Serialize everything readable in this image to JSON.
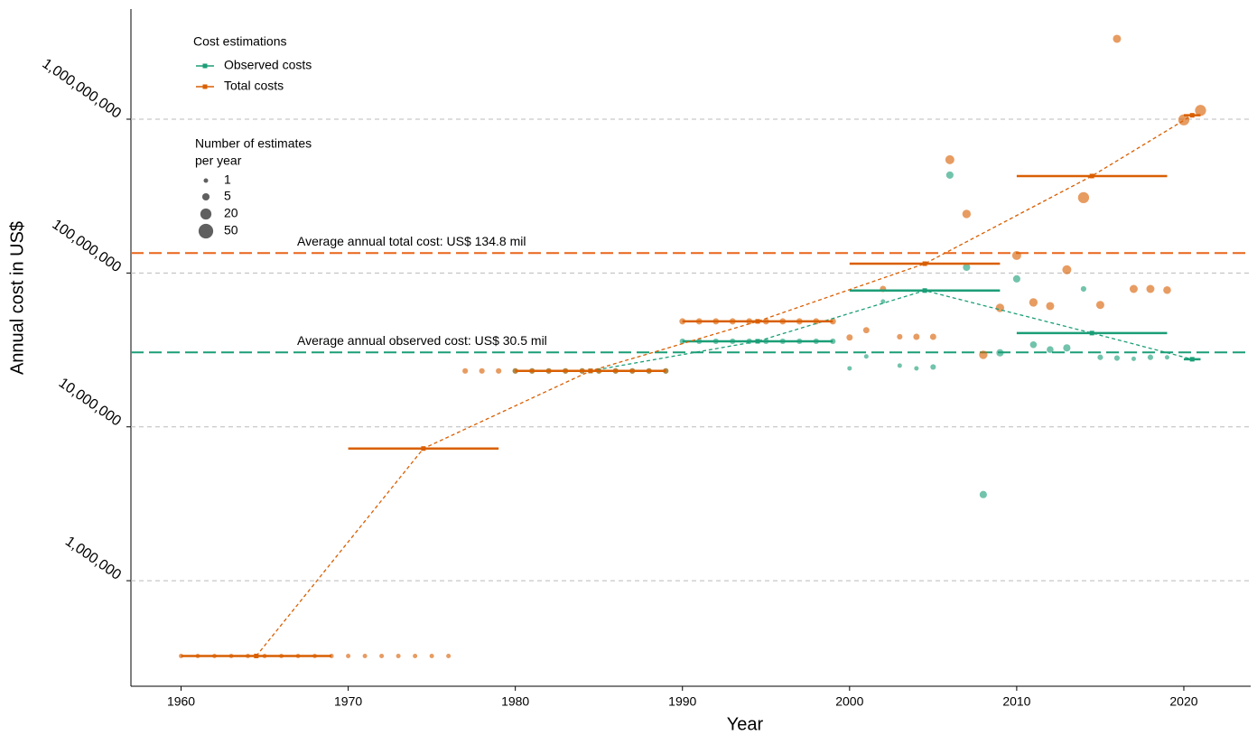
{
  "chart_data": {
    "type": "scatter",
    "x_label": "Year",
    "y_label": "Annual cost in US$",
    "xlim": [
      1957,
      2024
    ],
    "ylim": [
      206000,
      5200000000
    ],
    "log_y": true,
    "grid": true,
    "xticks": [
      1960,
      1970,
      1980,
      1990,
      2000,
      2010,
      2020
    ],
    "yticks": [
      {
        "value": 1000000,
        "label": "1,000,000"
      },
      {
        "value": 10000000,
        "label": "10,000,000"
      },
      {
        "value": 100000000,
        "label": "100,000,000"
      },
      {
        "value": 1000000000,
        "label": "1,000,000,000"
      }
    ],
    "legend": {
      "title": "Cost estimations",
      "position": "top-left"
    },
    "size_legend": {
      "title": [
        "Number of estimates",
        "per year"
      ],
      "sizes": [
        1,
        5,
        20,
        50
      ]
    },
    "reference_lines": [
      {
        "label": "Average annual total cost: US$ 134.8 mil",
        "value": 134800000,
        "color": "#e8651a"
      },
      {
        "label": "Average annual observed cost: US$ 30.5 mil",
        "value": 30500000,
        "color": "#1b9e77"
      }
    ],
    "series": [
      {
        "name": "Observed costs",
        "color": "#1b9e77",
        "x": [
          1980,
          1981,
          1982,
          1983,
          1984,
          1985,
          1986,
          1987,
          1988,
          1989,
          1990,
          1991,
          1992,
          1993,
          1994,
          1995,
          1996,
          1997,
          1998,
          1999,
          2000,
          2001,
          2002,
          2003,
          2004,
          2005,
          2006,
          2007,
          2008,
          2009,
          2010,
          2011,
          2012,
          2013,
          2014,
          2015,
          2016,
          2017,
          2018,
          2019
        ],
        "values": [
          23100000,
          23100000,
          23100000,
          23100000,
          23100000,
          23100000,
          23100000,
          23100000,
          23100000,
          23100000,
          36000000,
          36000000,
          36000000,
          36000000,
          36000000,
          36000000,
          36000000,
          36000000,
          36000000,
          36000000,
          24000000,
          28700000,
          65300000,
          25000000,
          24000000,
          24500000,
          433000000,
          109000000,
          3630000,
          30300000,
          91600000,
          34200000,
          31800000,
          32600000,
          78800000,
          28300000,
          28000000,
          27700000,
          28300000,
          28300000
        ],
        "sizes": [
          2,
          2,
          2,
          2,
          2,
          2,
          2,
          2,
          2,
          2,
          2,
          2,
          2,
          2,
          2,
          2,
          2,
          2,
          2,
          2,
          1,
          1,
          1,
          1,
          1,
          2,
          5,
          5,
          5,
          5,
          5,
          4,
          4,
          5,
          2,
          2,
          2,
          1,
          2,
          1
        ],
        "segments": [
          {
            "start": 1980,
            "end": 1989,
            "value": 23100000
          },
          {
            "start": 1990,
            "end": 1999,
            "value": 36000000
          },
          {
            "start": 2000,
            "end": 2009,
            "value": 76900000
          },
          {
            "start": 2010,
            "end": 2019,
            "value": 40700000
          },
          {
            "start": 2020,
            "end": 2021,
            "value": 27500000
          }
        ]
      },
      {
        "name": "Total costs",
        "color": "#d95f02",
        "x": [
          1960,
          1961,
          1962,
          1963,
          1964,
          1965,
          1966,
          1967,
          1968,
          1969,
          1970,
          1971,
          1972,
          1973,
          1974,
          1975,
          1976,
          1977,
          1978,
          1979,
          1980,
          1981,
          1982,
          1983,
          1984,
          1985,
          1986,
          1987,
          1988,
          1989,
          1990,
          1991,
          1992,
          1993,
          1994,
          1995,
          1996,
          1997,
          1998,
          1999,
          2000,
          2001,
          2002,
          2003,
          2004,
          2005,
          2006,
          2007,
          2008,
          2009,
          2010,
          2011,
          2012,
          2013,
          2014,
          2015,
          2016,
          2017,
          2018,
          2019,
          2020,
          2021
        ],
        "values": [
          324000,
          324000,
          324000,
          324000,
          324000,
          324000,
          324000,
          324000,
          324000,
          324000,
          324000,
          324000,
          324000,
          324000,
          324000,
          324000,
          324000,
          23100000,
          23100000,
          23100000,
          23100000,
          23100000,
          23100000,
          23100000,
          23100000,
          23100000,
          23100000,
          23100000,
          23100000,
          23100000,
          48500000,
          48500000,
          48500000,
          48500000,
          48500000,
          48500000,
          48500000,
          48500000,
          48500000,
          48500000,
          38100000,
          42500000,
          78800000,
          38500000,
          38500000,
          38500000,
          545000000,
          242000000,
          29400000,
          59400000,
          130000000,
          64400000,
          61000000,
          105000000,
          309000000,
          62000000,
          3330000000,
          78800000,
          78800000,
          77500000,
          990000000,
          1140000000
        ],
        "sizes": [
          1,
          1,
          1,
          1,
          1,
          1,
          1,
          1,
          1,
          1,
          1,
          1,
          1,
          1,
          1,
          1,
          1,
          2,
          2,
          2,
          2,
          2,
          2,
          2,
          2,
          2,
          2,
          2,
          2,
          2,
          3,
          3,
          3,
          3,
          3,
          3,
          3,
          3,
          3,
          3,
          3,
          3,
          3,
          2,
          3,
          3,
          10,
          8,
          8,
          8,
          10,
          8,
          7,
          10,
          20,
          7,
          7,
          7,
          7,
          6,
          20,
          20
        ],
        "segments": [
          {
            "start": 1960,
            "end": 1969,
            "value": 324000
          },
          {
            "start": 1970,
            "end": 1979,
            "value": 7230000
          },
          {
            "start": 1980,
            "end": 1989,
            "value": 23100000
          },
          {
            "start": 1990,
            "end": 1999,
            "value": 48500000
          },
          {
            "start": 2000,
            "end": 2009,
            "value": 115000000
          },
          {
            "start": 2010,
            "end": 2019,
            "value": 427000000
          },
          {
            "start": 2020,
            "end": 2021,
            "value": 1060000000
          }
        ]
      }
    ]
  }
}
